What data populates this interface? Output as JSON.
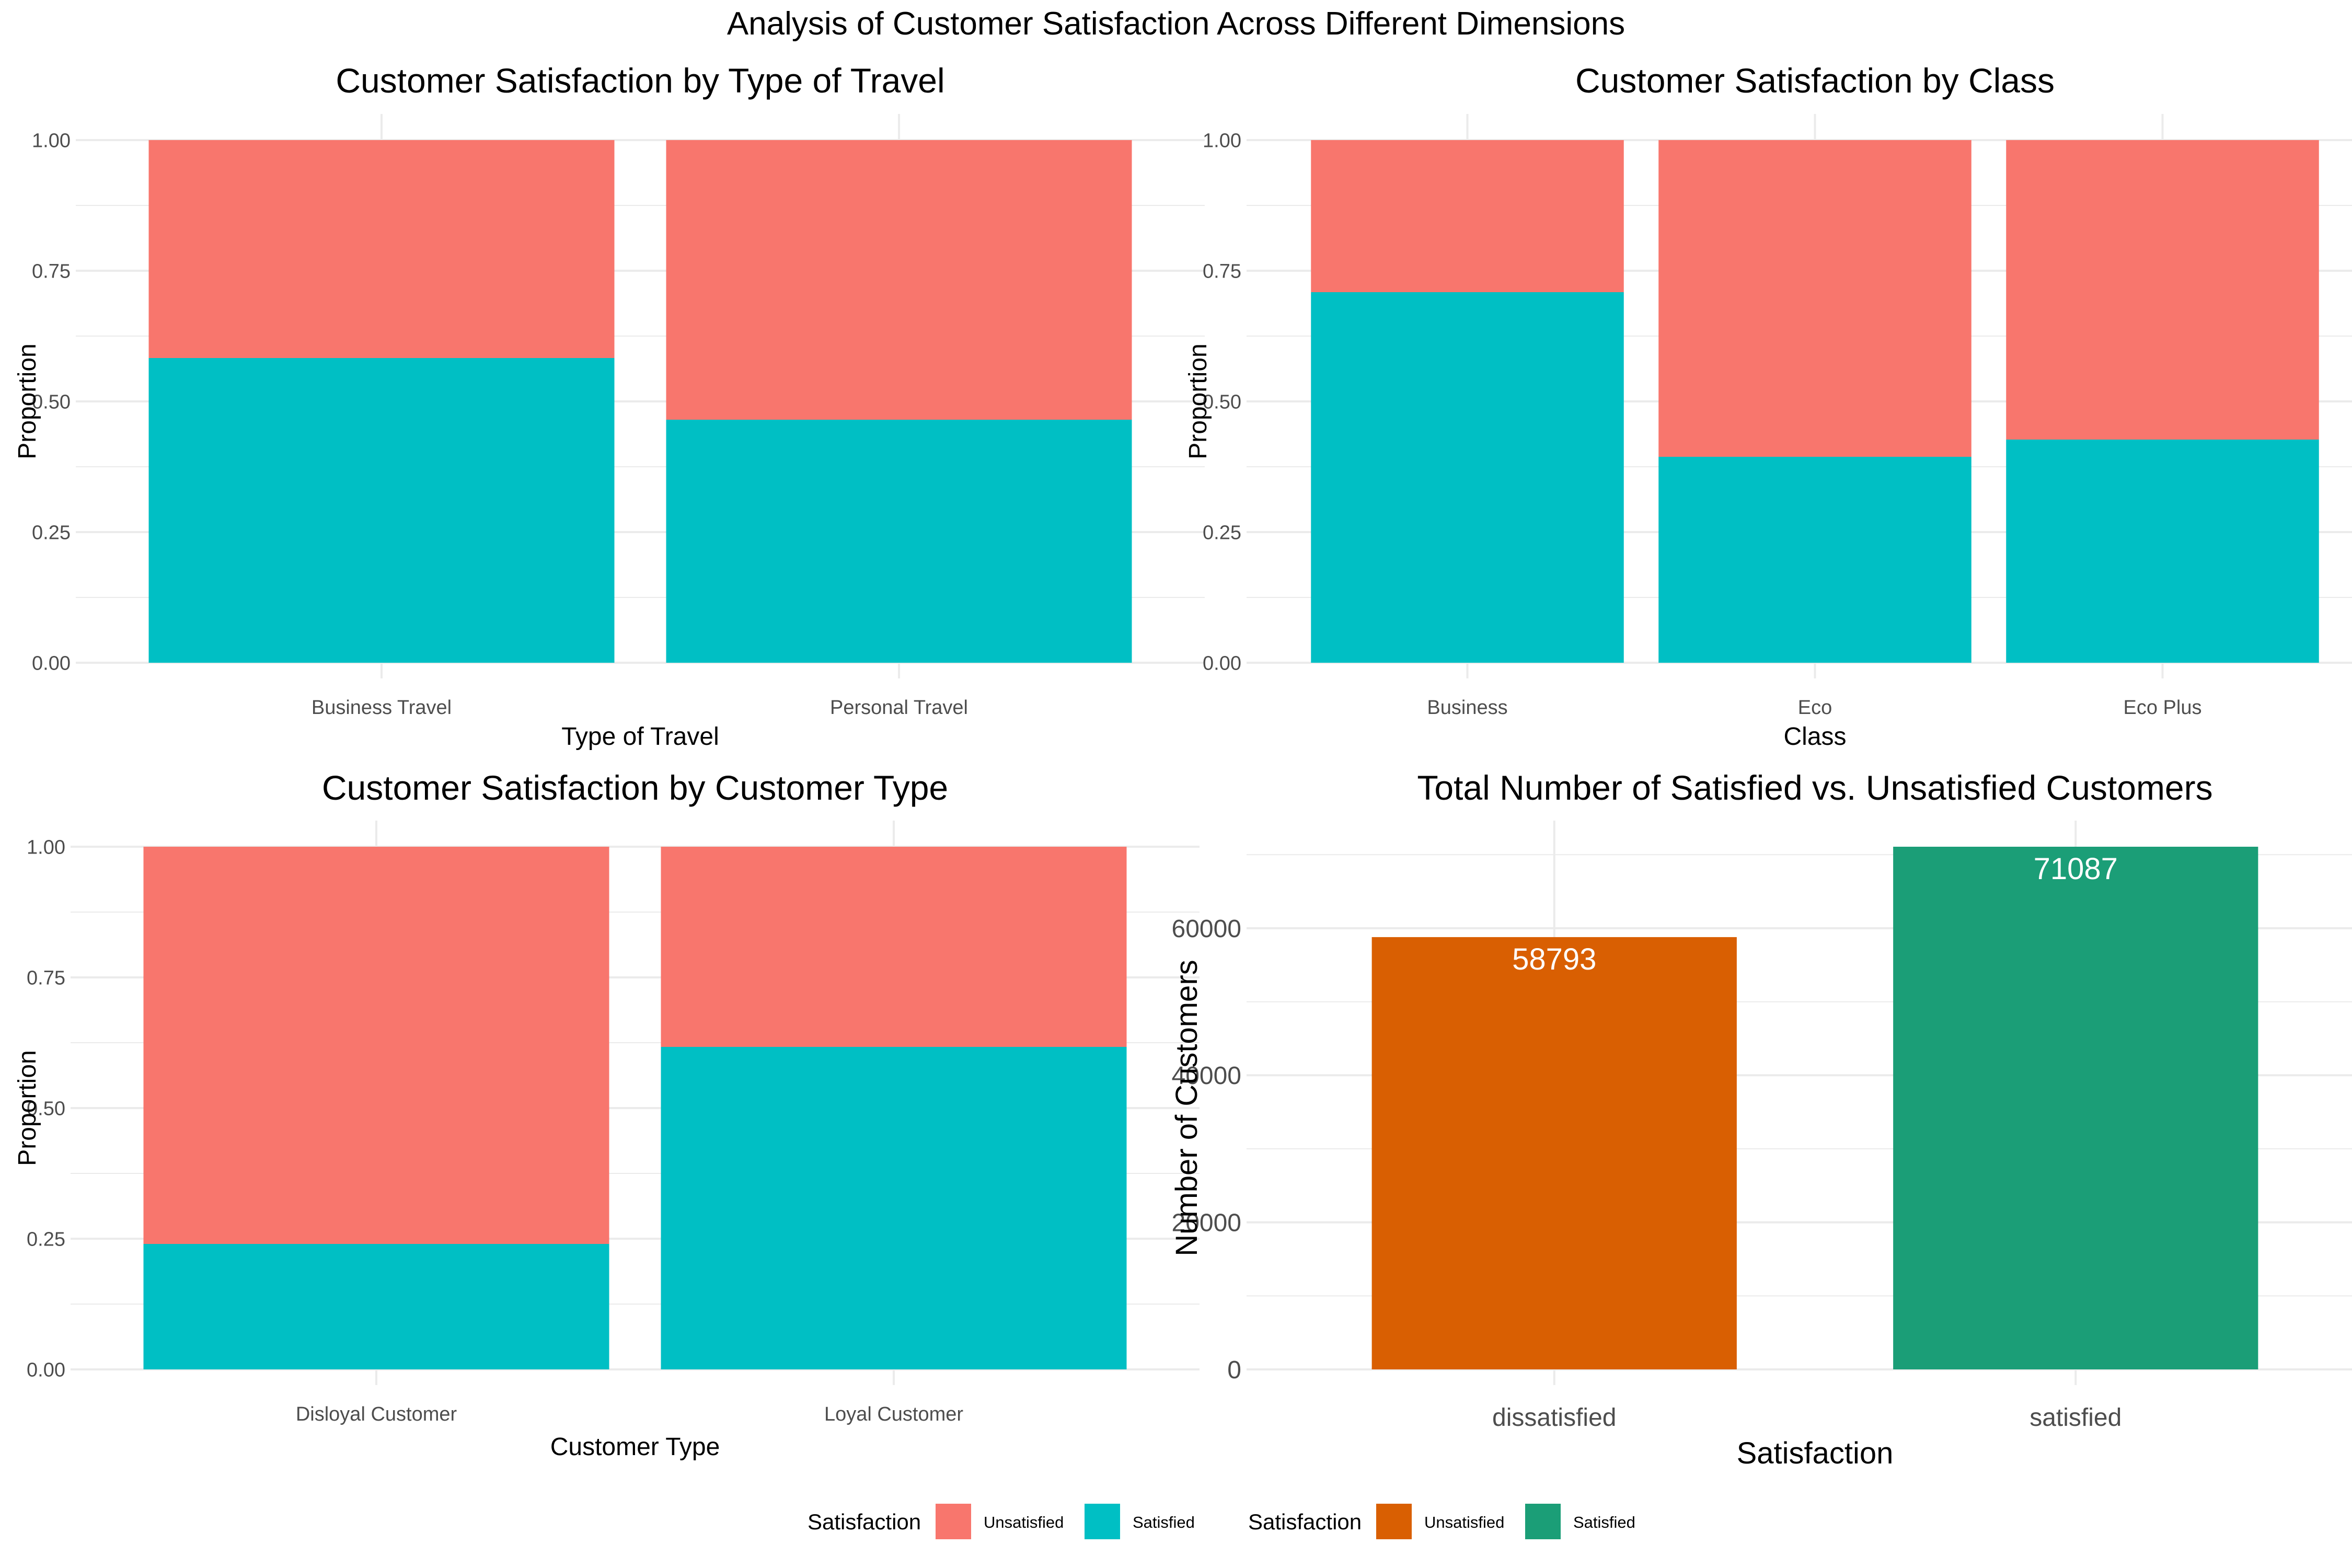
{
  "main_title": "Analysis of Customer Satisfaction Across Different Dimensions",
  "colors": {
    "prop_unsatisfied": "#F8766D",
    "prop_satisfied": "#00BFC4",
    "count_unsatisfied": "#D95F02",
    "count_satisfied": "#1B9E77",
    "grid": "#EBEBEB",
    "tick_text": "#4D4D4D",
    "text": "#000000",
    "bar_label": "#FFFFFF"
  },
  "chart_data": [
    {
      "type": "bar",
      "stacked": true,
      "title": "Customer Satisfaction by Type of Travel",
      "xlabel": "Type of Travel",
      "ylabel": "Proportion",
      "ylim": [
        0,
        1
      ],
      "yticks": [
        "0.00",
        "0.25",
        "0.50",
        "0.75",
        "1.00"
      ],
      "categories": [
        "Business Travel",
        "Personal Travel"
      ],
      "series": [
        {
          "name": "Satisfied",
          "values": [
            0.583,
            0.465
          ]
        },
        {
          "name": "Unsatisfied",
          "values": [
            0.417,
            0.535
          ]
        }
      ]
    },
    {
      "type": "bar",
      "stacked": true,
      "title": "Customer Satisfaction by Class",
      "xlabel": "Class",
      "ylabel": "Proportion",
      "ylim": [
        0,
        1
      ],
      "yticks": [
        "0.00",
        "0.25",
        "0.50",
        "0.75",
        "1.00"
      ],
      "categories": [
        "Business",
        "Eco",
        "Eco Plus"
      ],
      "series": [
        {
          "name": "Satisfied",
          "values": [
            0.709,
            0.394,
            0.427
          ]
        },
        {
          "name": "Unsatisfied",
          "values": [
            0.291,
            0.606,
            0.573
          ]
        }
      ]
    },
    {
      "type": "bar",
      "stacked": true,
      "title": "Customer Satisfaction by Customer Type",
      "xlabel": "Customer Type",
      "ylabel": "Proportion",
      "ylim": [
        0,
        1
      ],
      "yticks": [
        "0.00",
        "0.25",
        "0.50",
        "0.75",
        "1.00"
      ],
      "categories": [
        "Disloyal Customer",
        "Loyal Customer"
      ],
      "series": [
        {
          "name": "Satisfied",
          "values": [
            0.24,
            0.617
          ]
        },
        {
          "name": "Unsatisfied",
          "values": [
            0.76,
            0.383
          ]
        }
      ]
    },
    {
      "type": "bar",
      "title": "Total Number of Satisfied vs. Unsatisfied Customers",
      "xlabel": "Satisfaction",
      "ylabel": "Number of Customers",
      "ylim": [
        0,
        71087
      ],
      "yticks": [
        "0",
        "20000",
        "40000",
        "60000"
      ],
      "categories": [
        "dissatisfied",
        "satisfied"
      ],
      "values": [
        58793,
        71087
      ],
      "data_labels": [
        "58793",
        "71087"
      ]
    }
  ],
  "legends": [
    {
      "title": "Satisfaction",
      "items": [
        "Unsatisfied",
        "Satisfied"
      ]
    },
    {
      "title": "Satisfaction",
      "items": [
        "Unsatisfied",
        "Satisfied"
      ]
    }
  ]
}
